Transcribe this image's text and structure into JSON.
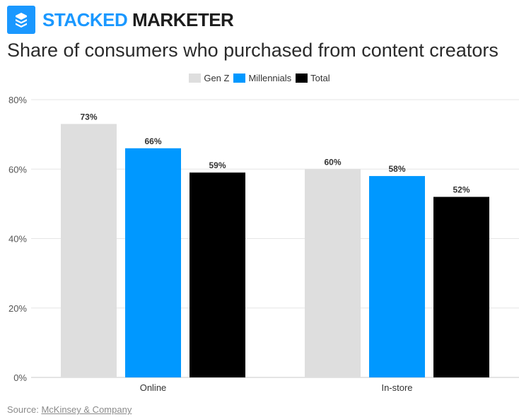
{
  "header": {
    "brand_part1": "STACKED",
    "brand_part2": "MARKETER",
    "logo_icon": "stack-layers-icon"
  },
  "colors": {
    "brand": "#1a98ff",
    "gen_z": "#dedede",
    "millennials": "#0098ff",
    "total": "#000000",
    "grid": "#e6e6e6"
  },
  "chart_data": {
    "type": "bar",
    "title": "Share of consumers who purchased from content creators",
    "categories": [
      "Online",
      "In-store"
    ],
    "series": [
      {
        "name": "Gen Z",
        "values": [
          73,
          60
        ],
        "labels": [
          "73%",
          "60%"
        ]
      },
      {
        "name": "Millennials",
        "values": [
          66,
          58
        ],
        "labels": [
          "66%",
          "58%"
        ]
      },
      {
        "name": "Total",
        "values": [
          59,
          52
        ],
        "labels": [
          "59%",
          "52%"
        ]
      }
    ],
    "ylim": [
      0,
      80
    ],
    "yticks": [
      0,
      20,
      40,
      60,
      80
    ],
    "ytick_labels": [
      "0%",
      "20%",
      "40%",
      "60%",
      "80%"
    ],
    "grid": true,
    "legend_position": "top-center",
    "xlabel": "",
    "ylabel": ""
  },
  "footer": {
    "source_label": "Source:",
    "source_link": "McKinsey & Company"
  }
}
